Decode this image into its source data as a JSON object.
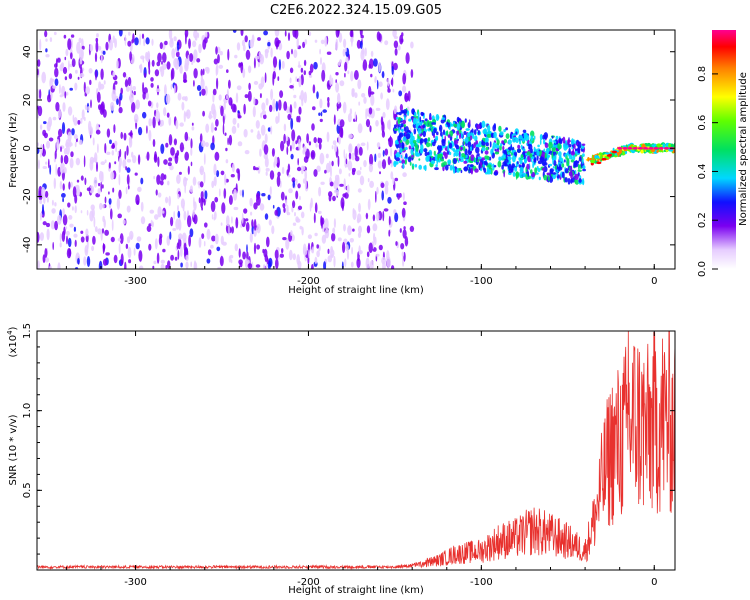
{
  "title": "C2E6.2022.324.15.09.G05",
  "chart_data": [
    {
      "type": "heatmap",
      "xlabel": "Height of straight line (km)",
      "ylabel": "Frequency (Hz)",
      "xlim": [
        -357,
        12
      ],
      "ylim": [
        -50,
        49
      ],
      "xticks": [
        -300,
        -200,
        -100,
        0
      ],
      "yticks": [
        -40,
        -20,
        0,
        20,
        40
      ],
      "colorbar": {
        "label": "Normalized spectral amplitude",
        "range": [
          0.0,
          0.98
        ],
        "ticks": [
          "0.0",
          "0.2",
          "0.4",
          "0.6",
          "0.8"
        ]
      },
      "regions": [
        {
          "x_range": [
            -357,
            -140
          ],
          "frequency_range": [
            -50,
            49
          ],
          "amplitude": 0.15
        },
        {
          "x_range": [
            -150,
            -40
          ],
          "center_frequency_from": 5,
          "center_frequency_to": -6,
          "half_width_hz": 12,
          "amplitude": 0.35
        },
        {
          "x_range": [
            -40,
            12
          ],
          "center_frequency_from": -6,
          "center_frequency_to": 0,
          "half_width_hz": 3,
          "amplitude": 0.9
        }
      ]
    },
    {
      "type": "line",
      "xlabel": "Height of straight line (km)",
      "ylabel": "SNR (10 * v/v)",
      "y_multiplier": "(x10^4)",
      "xlim": [
        -357,
        12
      ],
      "ylim": [
        0,
        1.5
      ],
      "xticks": [
        -300,
        -200,
        -100,
        0
      ],
      "yticks": [
        0.5,
        1.0,
        1.5
      ],
      "series_color": "#e8312e",
      "points": [
        [
          -357,
          0.02
        ],
        [
          -300,
          0.02
        ],
        [
          -250,
          0.02
        ],
        [
          -200,
          0.02
        ],
        [
          -150,
          0.02
        ],
        [
          -140,
          0.03
        ],
        [
          -125,
          0.06
        ],
        [
          -115,
          0.1
        ],
        [
          -100,
          0.12
        ],
        [
          -90,
          0.18
        ],
        [
          -80,
          0.2
        ],
        [
          -70,
          0.25
        ],
        [
          -60,
          0.22
        ],
        [
          -50,
          0.18
        ],
        [
          -40,
          0.12
        ],
        [
          -35,
          0.3
        ],
        [
          -30,
          0.55
        ],
        [
          -25,
          0.75
        ],
        [
          -20,
          0.8
        ],
        [
          -15,
          0.9
        ],
        [
          -10,
          0.95
        ],
        [
          -5,
          0.85
        ],
        [
          0,
          0.92
        ],
        [
          5,
          0.95
        ],
        [
          12,
          0.9
        ]
      ],
      "peaks": [
        [
          -15,
          1.5
        ],
        [
          12,
          1.42
        ],
        [
          -6,
          1.3
        ]
      ]
    }
  ]
}
